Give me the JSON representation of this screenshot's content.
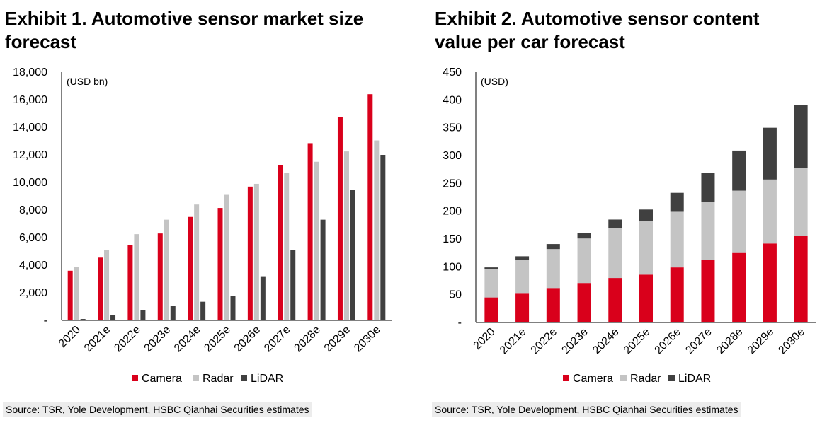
{
  "colors": {
    "camera": "#d9001b",
    "radar": "#c4c4c4",
    "lidar": "#404040"
  },
  "exhibits": [
    {
      "title": "Exhibit 1. Automotive sensor market size forecast",
      "source": "Source: TSR, Yole Development, HSBC Qianhai Securities estimates"
    },
    {
      "title": "Exhibit 2. Automotive sensor content value per car forecast",
      "source": "Source: TSR, Yole Development, HSBC Qianhai Securities estimates"
    }
  ],
  "chart_data": [
    {
      "type": "bar",
      "grouping": "clustered",
      "title": "Exhibit 1. Automotive sensor market size forecast",
      "unit_label": "(USD bn)",
      "categories": [
        "2020",
        "2021e",
        "2022e",
        "2023e",
        "2024e",
        "2025e",
        "2026e",
        "2027e",
        "2028e",
        "2029e",
        "2030e"
      ],
      "series": [
        {
          "name": "Camera",
          "color": "#d9001b",
          "values": [
            3600,
            4550,
            5450,
            6300,
            7500,
            8150,
            9700,
            11250,
            12850,
            14750,
            16400
          ]
        },
        {
          "name": "Radar",
          "color": "#c4c4c4",
          "values": [
            3850,
            5100,
            6250,
            7300,
            8400,
            9100,
            9900,
            10700,
            11500,
            12250,
            13050
          ]
        },
        {
          "name": "LiDAR",
          "color": "#404040",
          "values": [
            100,
            400,
            750,
            1050,
            1350,
            1750,
            3200,
            5100,
            7300,
            9450,
            12000
          ]
        }
      ],
      "ylim": [
        0,
        18000
      ],
      "yticks": [
        "-",
        "2,000",
        "4,000",
        "6,000",
        "8,000",
        "10,000",
        "12,000",
        "14,000",
        "16,000",
        "18,000"
      ],
      "grid": false,
      "legend": "bottom"
    },
    {
      "type": "bar",
      "grouping": "stacked",
      "title": "Exhibit 2. Automotive sensor content value per car forecast",
      "unit_label": "(USD)",
      "categories": [
        "2020",
        "2021e",
        "2022e",
        "2023e",
        "2024e",
        "2025e",
        "2026e",
        "2027e",
        "2028e",
        "2029e",
        "2030e"
      ],
      "series": [
        {
          "name": "Camera",
          "color": "#d9001b",
          "values": [
            45,
            53,
            62,
            71,
            80,
            86,
            99,
            112,
            125,
            142,
            156
          ]
        },
        {
          "name": "Radar",
          "color": "#c4c4c4",
          "values": [
            51,
            59,
            70,
            80,
            90,
            96,
            100,
            105,
            112,
            115,
            122
          ]
        },
        {
          "name": "LiDAR",
          "color": "#404040",
          "values": [
            3,
            7,
            9,
            10,
            15,
            21,
            34,
            52,
            72,
            93,
            113
          ]
        }
      ],
      "ylim": [
        0,
        450
      ],
      "yticks": [
        "-",
        "50",
        "100",
        "150",
        "200",
        "250",
        "300",
        "350",
        "400",
        "450"
      ],
      "grid": false,
      "legend": "bottom"
    }
  ]
}
